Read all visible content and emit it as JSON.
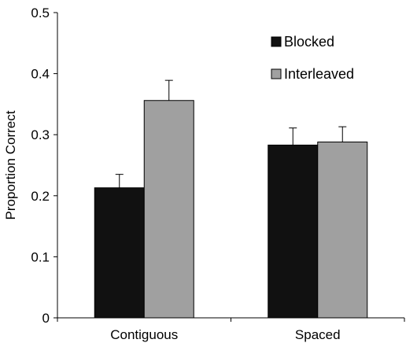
{
  "chart_data": {
    "type": "bar",
    "title": "",
    "xlabel": "",
    "ylabel": "Proportion Correct",
    "ylim": [
      0,
      0.5
    ],
    "yticks": [
      0,
      0.1,
      0.2,
      0.3,
      0.4,
      0.5
    ],
    "ytick_labels": [
      "0",
      "0.1",
      "0.2",
      "0.3",
      "0.4",
      "0.5"
    ],
    "categories": [
      "Contiguous",
      "Spaced"
    ],
    "series": [
      {
        "name": "Blocked",
        "values": [
          0.213,
          0.283
        ],
        "errors": [
          0.022,
          0.028
        ],
        "color": "#111111"
      },
      {
        "name": "Interleaved",
        "values": [
          0.356,
          0.288
        ],
        "errors": [
          0.033,
          0.025
        ],
        "color": "#a0a0a0"
      }
    ],
    "legend_position": "top-right",
    "grid": false
  }
}
